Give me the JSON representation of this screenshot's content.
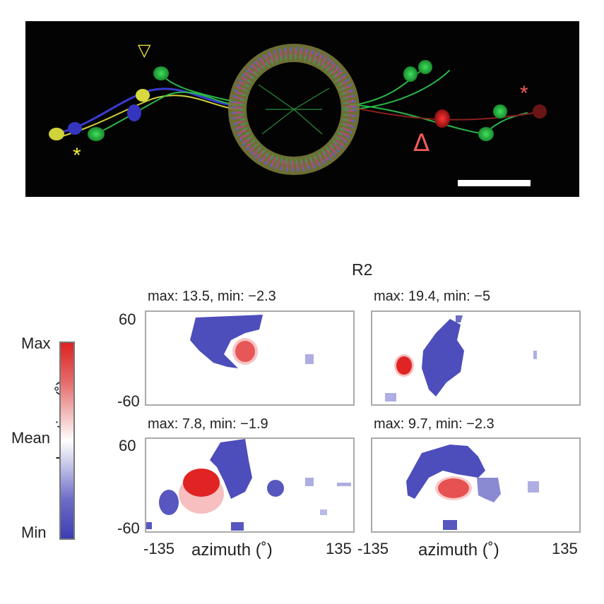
{
  "micrograph": {
    "markers": {
      "open_triangle": "▽",
      "asterisk_left": "*",
      "delta": "Δ",
      "asterisk_right": "*"
    },
    "colors": {
      "yellow_marker": "#f2ee3b",
      "red_marker": "#f05a5a"
    }
  },
  "figure": {
    "title": "R2",
    "panels": [
      {
        "title": "max: 13.5, min: −2.3"
      },
      {
        "title": "max: 19.4, min: −5"
      },
      {
        "title": "max: 7.8, min: −1.9"
      },
      {
        "title": "max: 9.7, min: −2.3"
      }
    ],
    "colorbar": {
      "max_label": "Max",
      "mean_label": "Mean",
      "min_label": "Min"
    },
    "axes": {
      "ylabel": "elevation (˚)",
      "xlabel": "azimuth (˚)",
      "y_top_tick": "60",
      "y_bottom_tick": "-60",
      "x_left_tick": "-135",
      "x_right_tick": "135"
    },
    "colors": {
      "excitatory": "#e02424",
      "inhibitory": "#3a3ab4",
      "frame": "#aaaaaa"
    }
  },
  "chart_data": [
    {
      "type": "heatmap",
      "title": "max: 13.5, min: −2.3",
      "xlabel": "azimuth (˚)",
      "ylabel": "elevation (˚)",
      "xlim": [
        -135,
        135
      ],
      "ylim": [
        -60,
        60
      ],
      "range": [
        -2.3,
        13.5
      ]
    },
    {
      "type": "heatmap",
      "title": "max: 19.4, min: −5",
      "xlabel": "azimuth (˚)",
      "ylabel": "elevation (˚)",
      "xlim": [
        -135,
        135
      ],
      "ylim": [
        -60,
        60
      ],
      "range": [
        -5,
        19.4
      ]
    },
    {
      "type": "heatmap",
      "title": "max: 7.8, min: −1.9",
      "xlabel": "azimuth (˚)",
      "ylabel": "elevation (˚)",
      "xlim": [
        -135,
        135
      ],
      "ylim": [
        -60,
        60
      ],
      "range": [
        -1.9,
        7.8
      ]
    },
    {
      "type": "heatmap",
      "title": "max: 9.7, min: −2.3",
      "xlabel": "azimuth (˚)",
      "ylabel": "elevation (˚)",
      "xlim": [
        -135,
        135
      ],
      "ylim": [
        -60,
        60
      ],
      "range": [
        -2.3,
        9.7
      ]
    }
  ]
}
